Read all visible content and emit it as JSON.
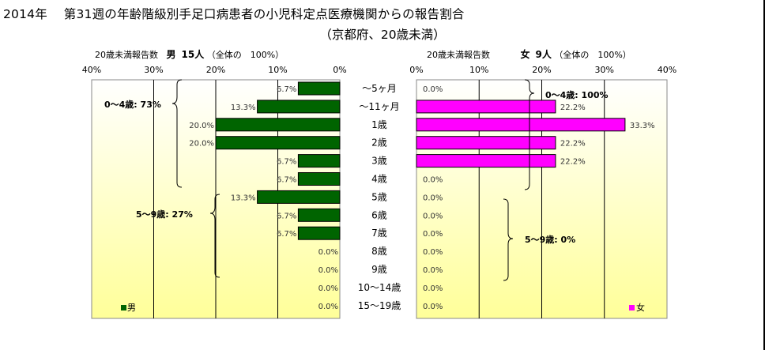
{
  "title": {
    "line1": "2014年　 第31週の年齢階級別手足口病患者の小児科定点医療機関からの報告割合",
    "line2": "（京都府、20歳未満）"
  },
  "male_header": {
    "label": "20歳未満報告数",
    "sex": "男",
    "count": "15人",
    "note": "（全体の　100%）"
  },
  "female_header": {
    "label": "20歳未満報告数",
    "sex": "女",
    "count": "9人",
    "note": "（全体の　100%）"
  },
  "colors": {
    "male": "#006400",
    "female": "#ff00ff",
    "plot_bg_top": "#ffffff",
    "plot_bg_bottom": "#ffff99"
  },
  "chart_data": [
    {
      "type": "bar",
      "orientation": "horizontal-left",
      "series": [
        {
          "name": "男",
          "values": [
            6.7,
            13.3,
            20.0,
            20.0,
            6.7,
            6.7,
            13.3,
            6.7,
            6.7,
            0.0,
            0.0,
            0.0,
            0.0
          ]
        }
      ],
      "categories": [
        "～5ヶ月",
        "～11ヶ月",
        "1歳",
        "2歳",
        "3歳",
        "4歳",
        "5歳",
        "6歳",
        "7歳",
        "8歳",
        "9歳",
        "10～14歳",
        "15～19歳"
      ],
      "value_labels": [
        "6.7%",
        "13.3%",
        "20.0%",
        "20.0%",
        "6.7%",
        "6.7%",
        "13.3%",
        "6.7%",
        "6.7%",
        "0.0%",
        "0.0%",
        "0.0%",
        "0.0%"
      ],
      "xlim": [
        0,
        40
      ],
      "xticks": [
        "40%",
        "30%",
        "20%",
        "10%",
        "0%"
      ],
      "legend": "男",
      "legend_position": "bottom-left",
      "annotations": [
        "0～4歳: 73%",
        "5～9歳: 27%"
      ]
    },
    {
      "type": "bar",
      "orientation": "horizontal-right",
      "series": [
        {
          "name": "女",
          "values": [
            0.0,
            22.2,
            33.3,
            22.2,
            22.2,
            0.0,
            0.0,
            0.0,
            0.0,
            0.0,
            0.0,
            0.0,
            0.0
          ]
        }
      ],
      "categories": [
        "～5ヶ月",
        "～11ヶ月",
        "1歳",
        "2歳",
        "3歳",
        "4歳",
        "5歳",
        "6歳",
        "7歳",
        "8歳",
        "9歳",
        "10～14歳",
        "15～19歳"
      ],
      "value_labels": [
        "0.0%",
        "22.2%",
        "33.3%",
        "22.2%",
        "22.2%",
        "0.0%",
        "0.0%",
        "0.0%",
        "0.0%",
        "0.0%",
        "0.0%",
        "0.0%",
        "0.0%"
      ],
      "xlim": [
        0,
        40
      ],
      "xticks": [
        "0%",
        "10%",
        "20%",
        "30%",
        "40%"
      ],
      "legend": "女",
      "legend_position": "bottom-right",
      "annotations": [
        "0～4歳: 100%",
        "5～9歳: 0%"
      ]
    }
  ]
}
